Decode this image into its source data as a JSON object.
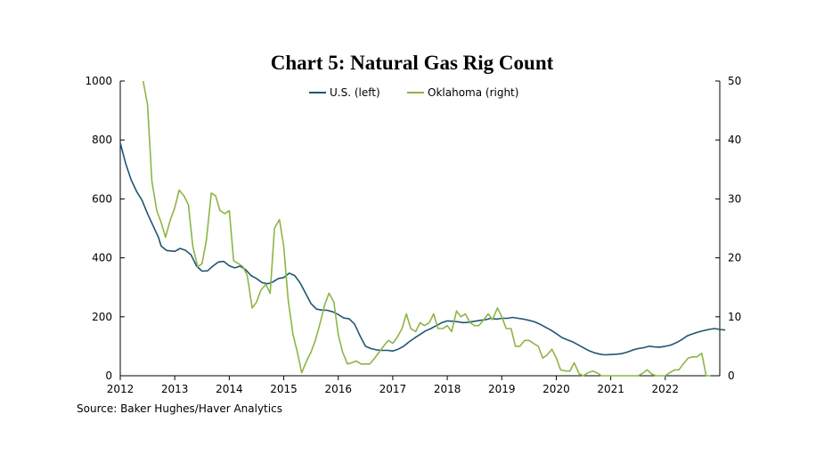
{
  "chart_data": {
    "type": "line",
    "title": "Chart 5: Natural Gas Rig Count",
    "source": "Source: Baker Hughes/Haver Analytics",
    "x_range": [
      2012,
      2023
    ],
    "x_ticks": [
      "2012",
      "2013",
      "2014",
      "2015",
      "2016",
      "2017",
      "2018",
      "2019",
      "2020",
      "2021",
      "2022"
    ],
    "y_left": {
      "range": [
        0,
        1000
      ],
      "ticks": [
        "0",
        "200",
        "400",
        "600",
        "800",
        "1000"
      ]
    },
    "y_right": {
      "range": [
        0,
        50
      ],
      "ticks": [
        "0",
        "10",
        "20",
        "30",
        "40",
        "50"
      ]
    },
    "grid": false,
    "legend": {
      "position": "top-center"
    },
    "series": [
      {
        "name": "U.S. (left)",
        "axis": "left",
        "color": "#1f5673",
        "points": [
          [
            2012.0,
            790
          ],
          [
            2012.1,
            720
          ],
          [
            2012.2,
            665
          ],
          [
            2012.3,
            625
          ],
          [
            2012.4,
            595
          ],
          [
            2012.5,
            550
          ],
          [
            2012.6,
            510
          ],
          [
            2012.7,
            470
          ],
          [
            2012.75,
            440
          ],
          [
            2012.85,
            425
          ],
          [
            2013.0,
            422
          ],
          [
            2013.1,
            432
          ],
          [
            2013.2,
            425
          ],
          [
            2013.3,
            410
          ],
          [
            2013.4,
            372
          ],
          [
            2013.5,
            355
          ],
          [
            2013.6,
            356
          ],
          [
            2013.7,
            372
          ],
          [
            2013.8,
            386
          ],
          [
            2013.9,
            388
          ],
          [
            2014.0,
            373
          ],
          [
            2014.1,
            366
          ],
          [
            2014.2,
            372
          ],
          [
            2014.3,
            360
          ],
          [
            2014.4,
            340
          ],
          [
            2014.5,
            330
          ],
          [
            2014.6,
            316
          ],
          [
            2014.7,
            312
          ],
          [
            2014.8,
            318
          ],
          [
            2014.9,
            330
          ],
          [
            2015.0,
            333
          ],
          [
            2015.1,
            348
          ],
          [
            2015.2,
            340
          ],
          [
            2015.3,
            315
          ],
          [
            2015.4,
            280
          ],
          [
            2015.5,
            245
          ],
          [
            2015.6,
            226
          ],
          [
            2015.7,
            223
          ],
          [
            2015.8,
            222
          ],
          [
            2015.9,
            217
          ],
          [
            2016.0,
            208
          ],
          [
            2016.1,
            196
          ],
          [
            2016.2,
            193
          ],
          [
            2016.3,
            175
          ],
          [
            2016.4,
            135
          ],
          [
            2016.5,
            100
          ],
          [
            2016.6,
            92
          ],
          [
            2016.7,
            88
          ],
          [
            2016.8,
            86
          ],
          [
            2016.9,
            86
          ],
          [
            2017.0,
            84
          ],
          [
            2017.1,
            90
          ],
          [
            2017.2,
            100
          ],
          [
            2017.3,
            115
          ],
          [
            2017.4,
            128
          ],
          [
            2017.5,
            140
          ],
          [
            2017.6,
            152
          ],
          [
            2017.7,
            160
          ],
          [
            2017.8,
            170
          ],
          [
            2017.9,
            180
          ],
          [
            2018.0,
            186
          ],
          [
            2018.1,
            185
          ],
          [
            2018.2,
            183
          ],
          [
            2018.3,
            180
          ],
          [
            2018.4,
            182
          ],
          [
            2018.5,
            185
          ],
          [
            2018.6,
            188
          ],
          [
            2018.7,
            190
          ],
          [
            2018.8,
            195
          ],
          [
            2018.9,
            192
          ],
          [
            2019.0,
            195
          ],
          [
            2019.1,
            195
          ],
          [
            2019.2,
            198
          ],
          [
            2019.3,
            195
          ],
          [
            2019.4,
            192
          ],
          [
            2019.5,
            188
          ],
          [
            2019.6,
            183
          ],
          [
            2019.7,
            175
          ],
          [
            2019.8,
            165
          ],
          [
            2019.9,
            155
          ],
          [
            2020.0,
            143
          ],
          [
            2020.1,
            130
          ],
          [
            2020.2,
            122
          ],
          [
            2020.3,
            115
          ],
          [
            2020.4,
            105
          ],
          [
            2020.5,
            95
          ],
          [
            2020.6,
            85
          ],
          [
            2020.7,
            78
          ],
          [
            2020.8,
            73
          ],
          [
            2020.9,
            71
          ],
          [
            2021.0,
            72
          ],
          [
            2021.1,
            73
          ],
          [
            2021.2,
            75
          ],
          [
            2021.3,
            80
          ],
          [
            2021.4,
            87
          ],
          [
            2021.5,
            92
          ],
          [
            2021.6,
            95
          ],
          [
            2021.7,
            100
          ],
          [
            2021.8,
            98
          ],
          [
            2021.9,
            97
          ],
          [
            2022.0,
            100
          ],
          [
            2022.1,
            104
          ],
          [
            2022.2,
            112
          ],
          [
            2022.3,
            122
          ],
          [
            2022.4,
            135
          ],
          [
            2022.5,
            142
          ],
          [
            2022.6,
            148
          ],
          [
            2022.7,
            153
          ],
          [
            2022.8,
            157
          ],
          [
            2022.9,
            160
          ],
          [
            2023.0,
            157
          ],
          [
            2023.1,
            155
          ]
        ]
      },
      {
        "name": "Oklahoma (right)",
        "axis": "right",
        "color": "#8db547",
        "points": [
          [
            2012.42,
            50
          ],
          [
            2012.5,
            46
          ],
          [
            2012.58,
            33
          ],
          [
            2012.67,
            28
          ],
          [
            2012.75,
            26
          ],
          [
            2012.83,
            23.5
          ],
          [
            2012.92,
            26.5
          ],
          [
            2013.0,
            28.5
          ],
          [
            2013.08,
            31.5
          ],
          [
            2013.17,
            30.5
          ],
          [
            2013.25,
            29
          ],
          [
            2013.33,
            22
          ],
          [
            2013.42,
            18.5
          ],
          [
            2013.5,
            19
          ],
          [
            2013.58,
            23
          ],
          [
            2013.67,
            31
          ],
          [
            2013.75,
            30.5
          ],
          [
            2013.83,
            28
          ],
          [
            2013.92,
            27.5
          ],
          [
            2014.0,
            28
          ],
          [
            2014.08,
            19.5
          ],
          [
            2014.17,
            19
          ],
          [
            2014.25,
            18.5
          ],
          [
            2014.33,
            17
          ],
          [
            2014.42,
            11.5
          ],
          [
            2014.5,
            12.5
          ],
          [
            2014.58,
            14.5
          ],
          [
            2014.67,
            15.5
          ],
          [
            2014.75,
            14
          ],
          [
            2014.83,
            25
          ],
          [
            2014.92,
            26.5
          ],
          [
            2015.0,
            22
          ],
          [
            2015.08,
            13
          ],
          [
            2015.17,
            7
          ],
          [
            2015.25,
            4
          ],
          [
            2015.33,
            0.5
          ],
          [
            2015.42,
            2.5
          ],
          [
            2015.5,
            4
          ],
          [
            2015.58,
            6
          ],
          [
            2015.67,
            9
          ],
          [
            2015.75,
            12
          ],
          [
            2015.83,
            14
          ],
          [
            2015.92,
            12.5
          ],
          [
            2016.0,
            7
          ],
          [
            2016.08,
            4
          ],
          [
            2016.17,
            2
          ],
          [
            2016.25,
            2.2
          ],
          [
            2016.33,
            2.5
          ],
          [
            2016.42,
            2
          ],
          [
            2016.5,
            2
          ],
          [
            2016.58,
            2
          ],
          [
            2016.67,
            3
          ],
          [
            2016.75,
            4
          ],
          [
            2016.83,
            5
          ],
          [
            2016.92,
            6
          ],
          [
            2017.0,
            5.5
          ],
          [
            2017.08,
            6.5
          ],
          [
            2017.17,
            8
          ],
          [
            2017.25,
            10.5
          ],
          [
            2017.33,
            8
          ],
          [
            2017.42,
            7.5
          ],
          [
            2017.5,
            9
          ],
          [
            2017.58,
            8.5
          ],
          [
            2017.67,
            9
          ],
          [
            2017.75,
            10.5
          ],
          [
            2017.83,
            8
          ],
          [
            2017.92,
            8
          ],
          [
            2018.0,
            8.5
          ],
          [
            2018.08,
            7.5
          ],
          [
            2018.17,
            11
          ],
          [
            2018.25,
            10
          ],
          [
            2018.33,
            10.5
          ],
          [
            2018.42,
            9
          ],
          [
            2018.5,
            8.5
          ],
          [
            2018.58,
            8.5
          ],
          [
            2018.67,
            9.5
          ],
          [
            2018.75,
            10.5
          ],
          [
            2018.83,
            9.5
          ],
          [
            2018.92,
            11.5
          ],
          [
            2019.0,
            10
          ],
          [
            2019.08,
            8
          ],
          [
            2019.17,
            8
          ],
          [
            2019.25,
            5
          ],
          [
            2019.33,
            5
          ],
          [
            2019.42,
            6
          ],
          [
            2019.5,
            6
          ],
          [
            2019.58,
            5.5
          ],
          [
            2019.67,
            5
          ],
          [
            2019.75,
            3
          ],
          [
            2019.83,
            3.5
          ],
          [
            2019.92,
            4.5
          ],
          [
            2020.0,
            3
          ],
          [
            2020.08,
            1
          ],
          [
            2020.17,
            0.8
          ],
          [
            2020.25,
            0.8
          ],
          [
            2020.33,
            2.2
          ],
          [
            2020.42,
            0.3
          ],
          [
            2020.5,
            0
          ],
          [
            2020.58,
            0.5
          ],
          [
            2020.67,
            0.8
          ],
          [
            2020.75,
            0.5
          ],
          [
            2020.83,
            0
          ],
          [
            2020.92,
            0
          ],
          [
            2021.0,
            0
          ],
          [
            2021.5,
            0
          ],
          [
            2021.58,
            0.4
          ],
          [
            2021.67,
            1
          ],
          [
            2021.75,
            0.3
          ],
          [
            2021.83,
            0
          ],
          [
            2022.0,
            0
          ],
          [
            2022.08,
            0.5
          ],
          [
            2022.17,
            1
          ],
          [
            2022.25,
            1
          ],
          [
            2022.33,
            2
          ],
          [
            2022.42,
            3
          ],
          [
            2022.5,
            3.2
          ],
          [
            2022.58,
            3.2
          ],
          [
            2022.67,
            3.8
          ],
          [
            2022.75,
            0
          ],
          [
            2022.83,
            0
          ]
        ]
      }
    ]
  }
}
